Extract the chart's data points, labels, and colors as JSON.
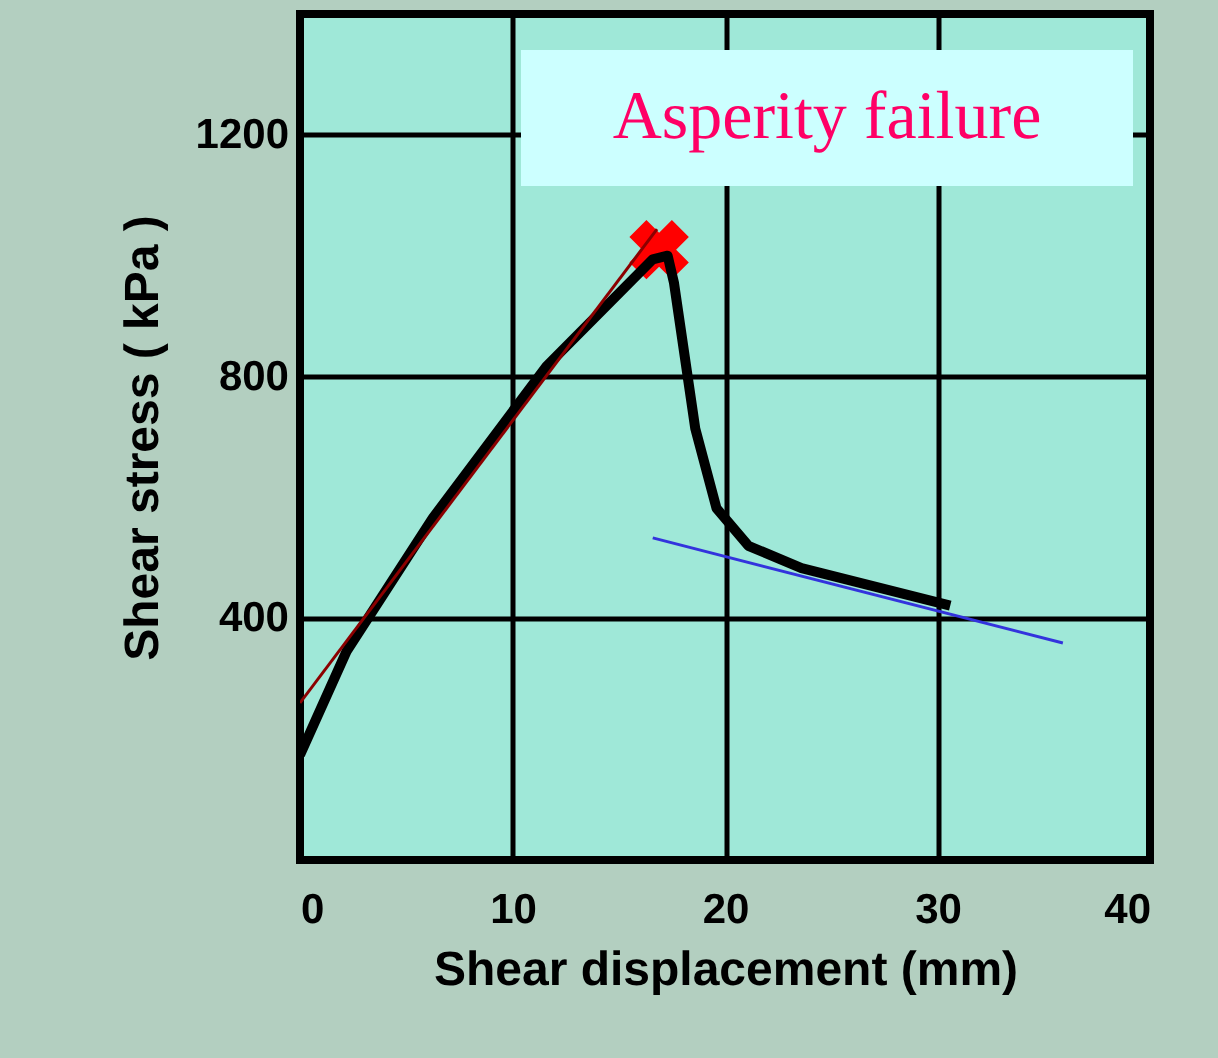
{
  "chart_data": {
    "type": "line",
    "xlabel": "Shear displacement (mm)",
    "ylabel": "Shear stress ( kPa )",
    "xlim": [
      0,
      40
    ],
    "xticks": [
      0,
      10,
      20,
      30,
      40
    ],
    "ylim": [
      0,
      1400
    ],
    "yticks": [
      400,
      800,
      1200
    ],
    "grid": true,
    "annotations": [
      "Asperity failure"
    ],
    "series": [
      {
        "type": "line",
        "color": "#000000",
        "x": [
          0,
          2.2,
          6.25,
          11.6,
          16.6,
          17.3,
          17.6,
          18.6,
          19.6,
          21.1,
          23.6,
          30.6
        ],
        "values": [
          174,
          346,
          566,
          817,
          994,
          1000,
          955,
          714,
          582,
          520,
          483,
          421
        ]
      },
      {
        "type": "line",
        "color": "#8b0000",
        "x": [
          0,
          16.8
        ],
        "values": [
          260,
          1044
        ]
      },
      {
        "type": "line",
        "color": "#3333dd",
        "x": [
          16.6,
          35.9
        ],
        "values": [
          533,
          359
        ]
      },
      {
        "type": "scatter",
        "color": "#ff0000",
        "marker": "cross",
        "x": [
          16.9
        ],
        "values": [
          1010
        ]
      }
    ]
  }
}
